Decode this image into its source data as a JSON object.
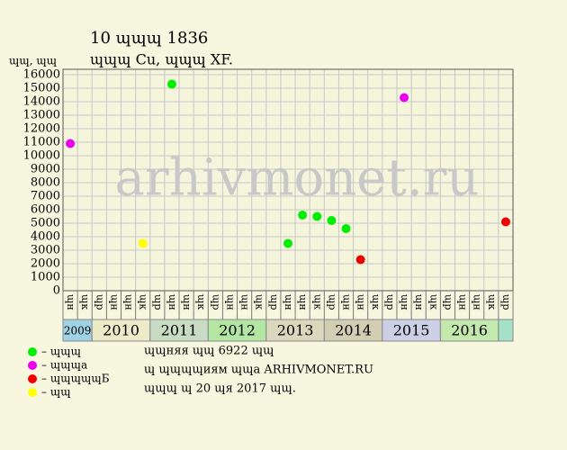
{
  "chart_data": {
    "type": "scatter",
    "title": "10 ɰɰɰ 1836",
    "subtitle": "ɰɰɰ Cu, ɰɰɰ XF.",
    "y_label": "ɰɰ, ɰɰ",
    "watermark": "arhivmonet.ru",
    "categories": [
      "ɰн",
      "ɰк",
      "ɰр",
      "ɰн",
      "ɰн",
      "ɰк",
      "ɰр",
      "ɰн",
      "ɰн",
      "ɰк",
      "ɰр",
      "ɰн",
      "ɰн",
      "ɰк",
      "ɰр",
      "ɰн",
      "ɰн",
      "ɰк",
      "ɰр",
      "ɰн",
      "ɰн",
      "ɰк",
      "ɰр",
      "ɰн",
      "ɰн",
      "ɰк",
      "ɰр",
      "ɰн",
      "ɰн",
      "ɰк",
      "ɰр"
    ],
    "years": [
      {
        "label": "2009",
        "quarters": 2,
        "color": "#9fd3e3"
      },
      {
        "label": "2010",
        "quarters": 4,
        "color": "#ecebc8"
      },
      {
        "label": "2011",
        "quarters": 4,
        "color": "#c8dcc4"
      },
      {
        "label": "2012",
        "quarters": 4,
        "color": "#b3e6a3"
      },
      {
        "label": "2013",
        "quarters": 4,
        "color": "#d9d8bd"
      },
      {
        "label": "2014",
        "quarters": 4,
        "color": "#d2ceb4"
      },
      {
        "label": "2015",
        "quarters": 4,
        "color": "#cbd0e6"
      },
      {
        "label": "2016",
        "quarters": 4,
        "color": "#c4e9ae"
      },
      {
        "label": "",
        "quarters": 1,
        "color": "#a6e2c8"
      }
    ],
    "series": [
      {
        "name": "– ɰɰɰ",
        "color": "#00ee00",
        "values": [
          null,
          null,
          null,
          null,
          null,
          null,
          null,
          15300,
          null,
          null,
          null,
          null,
          null,
          null,
          null,
          3500,
          5600,
          5500,
          5200,
          4600,
          null,
          null,
          null,
          null,
          null,
          null,
          null,
          null,
          null,
          null,
          null
        ]
      },
      {
        "name": "– ɰɰɰа",
        "color": "#ee00ee",
        "values": [
          10900,
          null,
          null,
          null,
          null,
          null,
          null,
          null,
          null,
          null,
          null,
          null,
          null,
          null,
          null,
          null,
          null,
          null,
          null,
          null,
          null,
          null,
          null,
          14300,
          null,
          null,
          null,
          null,
          null,
          null,
          null
        ]
      },
      {
        "name": "– ɰɰɰɰɰБ",
        "color": "#ee0000",
        "values": [
          null,
          null,
          null,
          null,
          null,
          null,
          null,
          null,
          null,
          null,
          null,
          null,
          null,
          null,
          null,
          null,
          null,
          null,
          null,
          null,
          2300,
          null,
          null,
          null,
          null,
          null,
          null,
          null,
          null,
          null,
          5100
        ]
      },
      {
        "name": "– ɰɰ",
        "color": "#ffff00",
        "values": [
          null,
          null,
          null,
          null,
          null,
          3500,
          null,
          null,
          null,
          null,
          null,
          null,
          null,
          null,
          null,
          null,
          null,
          null,
          null,
          null,
          null,
          null,
          null,
          null,
          null,
          null,
          null,
          null,
          null,
          null,
          null
        ]
      }
    ],
    "ylim": [
      0,
      16400
    ],
    "yticks": [
      0,
      1000,
      2000,
      3000,
      4000,
      5000,
      6000,
      7000,
      8000,
      9000,
      10000,
      11000,
      12000,
      13000,
      14000,
      15000,
      16000
    ],
    "grid": true,
    "notes": [
      "ɰɰняя ɰɰ 6922 ɰɰ",
      "ɰ ɰɰɰɰиям ɰɰа ARHIVMONET.RU",
      "ɰɰɰ ɰ 20 ɰя 2017 ɰɰ."
    ]
  }
}
